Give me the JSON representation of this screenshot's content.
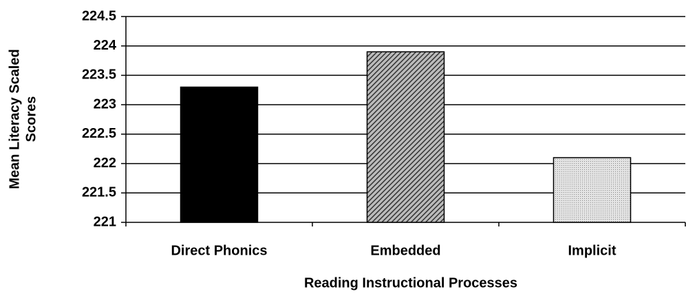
{
  "chart_data": {
    "type": "bar",
    "x_label": "Reading Instructional Processes",
    "y_label": [
      "Mean Literacy Scaled",
      "Scores"
    ],
    "categories": [
      "Direct Phonics",
      "Embedded",
      "Implicit"
    ],
    "values": [
      223.3,
      223.9,
      222.1
    ],
    "colors": [
      "#000000",
      "#4a4a4a",
      "#cfcfcf"
    ],
    "patterns": [
      "solid",
      "hatch",
      "dots"
    ],
    "ylim": [
      221,
      224.5
    ],
    "yticks": [
      221,
      221.5,
      222,
      222.5,
      223,
      223.5,
      224,
      224.5
    ],
    "grid": true
  }
}
